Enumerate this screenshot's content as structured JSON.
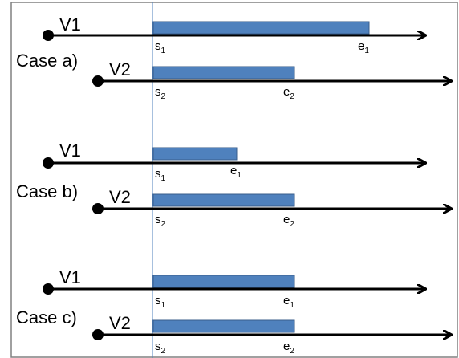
{
  "cases": [
    {
      "label": "Case a)",
      "rows": [
        {
          "vehicle": "V1",
          "start": "s",
          "start_sub": "1",
          "end": "e",
          "end_sub": "1"
        },
        {
          "vehicle": "V2",
          "start": "s",
          "start_sub": "2",
          "end": "e",
          "end_sub": "2"
        }
      ]
    },
    {
      "label": "Case b)",
      "rows": [
        {
          "vehicle": "V1",
          "start": "s",
          "start_sub": "1",
          "end": "e",
          "end_sub": "1"
        },
        {
          "vehicle": "V2",
          "start": "s",
          "start_sub": "2",
          "end": "e",
          "end_sub": "2"
        }
      ]
    },
    {
      "label": "Case c)",
      "rows": [
        {
          "vehicle": "V1",
          "start": "s",
          "start_sub": "1",
          "end": "e",
          "end_sub": "1"
        },
        {
          "vehicle": "V2",
          "start": "s",
          "start_sub": "2",
          "end": "e",
          "end_sub": "2"
        }
      ]
    }
  ],
  "colors": {
    "bar_fill": "#4f81bd",
    "bar_stroke": "#385d8a",
    "reference_line": "#4f81bd",
    "border": "#808080",
    "line": "#000000"
  }
}
